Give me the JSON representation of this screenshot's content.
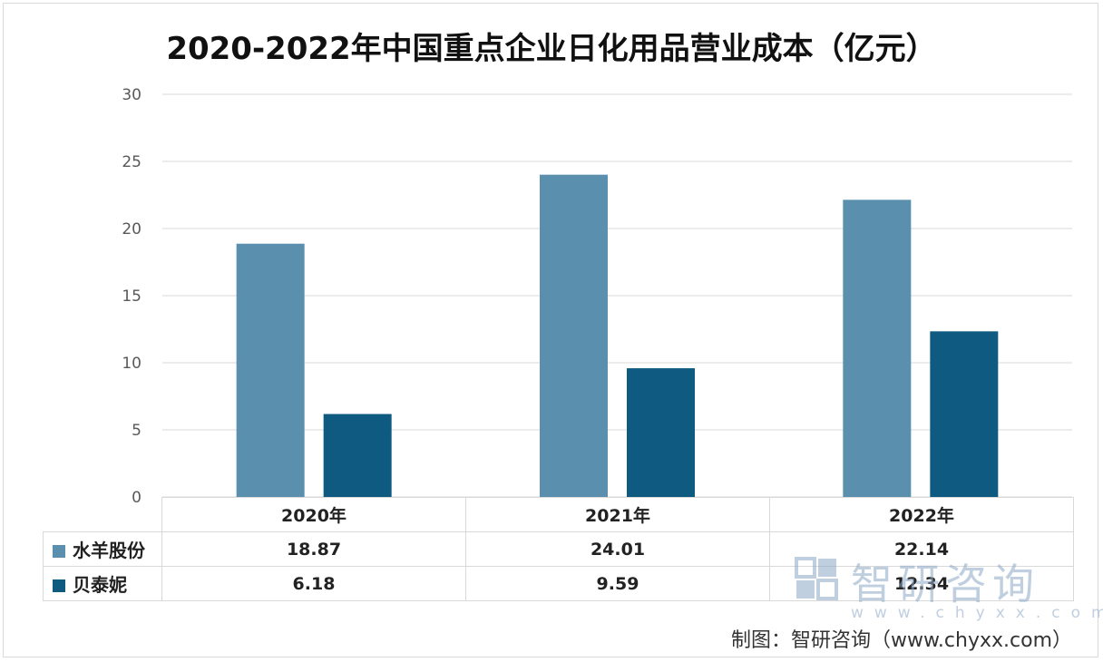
{
  "chart_data": {
    "type": "bar",
    "title": "2020-2022年中国重点企业日化用品营业成本（亿元）",
    "categories": [
      "2020年",
      "2021年",
      "2022年"
    ],
    "series": [
      {
        "name": "水羊股份",
        "values": [
          18.87,
          24.01,
          22.14
        ],
        "color": "#5b8fae"
      },
      {
        "name": "贝泰妮",
        "values": [
          6.18,
          9.59,
          12.34
        ],
        "color": "#0e5a80"
      }
    ],
    "ylim": [
      0,
      30
    ],
    "yticks": [
      0,
      5,
      10,
      15,
      20,
      25,
      30
    ],
    "grid": true,
    "legend": "data-table",
    "value_labels": {
      "s0": [
        "18.87",
        "24.01",
        "22.14"
      ],
      "s1": [
        "6.18",
        "9.59",
        "12.34"
      ]
    }
  },
  "watermark": {
    "text": "智研咨询",
    "url": "www.chyxx.com"
  },
  "source": "制图：智研咨询（www.chyxx.com）"
}
